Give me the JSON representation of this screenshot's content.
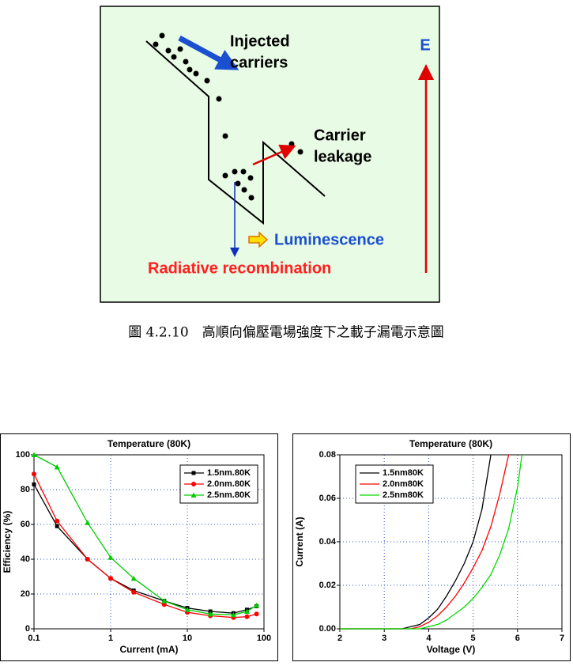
{
  "diagram": {
    "injected_carriers": [
      "Injected",
      "carriers"
    ],
    "carrier_leakage": [
      "Carrier",
      "leakage"
    ],
    "field": "E",
    "luminescence": "Luminescence",
    "radiative_recombination": "Radiative recombination"
  },
  "caption": "圖 4.2.10　高順向偏壓電場強度下之載子漏電示意圖",
  "chart_data": [
    {
      "type": "line",
      "title": "Temperature (80K)",
      "x_label": "Current (mA)",
      "y_label": "Efficiency (%)",
      "x_scale": "log",
      "x": [
        0.1,
        0.2,
        0.5,
        1,
        2,
        5,
        10,
        20,
        40,
        60,
        80
      ],
      "series": [
        {
          "name": "1.5nm.80K",
          "color": "#000000",
          "marker": "square",
          "values": [
            83,
            59,
            40,
            29,
            22,
            16,
            12,
            10,
            9,
            11,
            13
          ]
        },
        {
          "name": "2.0nm.80K",
          "color": "#ff0000",
          "marker": "circle",
          "values": [
            89,
            62,
            40,
            29,
            21,
            14,
            9.5,
            7.5,
            6.5,
            7,
            8.5
          ]
        },
        {
          "name": "2.5nm.80K",
          "color": "#00cc00",
          "marker": "triangle",
          "values": [
            100,
            93,
            61,
            41,
            29,
            16,
            11,
            8.5,
            8,
            10,
            13.5
          ]
        }
      ],
      "xlim": [
        0.1,
        100
      ],
      "xticks": [
        0.1,
        1,
        10,
        100
      ],
      "ylim": [
        0,
        100
      ],
      "yticks": [
        0,
        20,
        40,
        60,
        80,
        100
      ],
      "grid": true,
      "legend": "upper right"
    },
    {
      "type": "line",
      "title": "Temperature (80K)",
      "x_label": "Voltage (V)",
      "y_label": "Current (A)",
      "x_scale": "linear",
      "x": [
        2,
        3,
        3.4,
        3.6,
        3.8,
        4.0,
        4.2,
        4.4,
        4.6,
        4.8,
        5.0,
        5.2,
        5.4,
        5.6,
        5.8,
        6.0,
        6.1
      ],
      "series": [
        {
          "name": "1.5nm80K",
          "color": "#000000",
          "values": [
            0,
            0,
            0,
            0.001,
            0.002,
            0.005,
            0.009,
            0.015,
            0.022,
            0.03,
            0.04,
            0.055,
            0.08,
            null,
            null,
            null,
            null
          ]
        },
        {
          "name": "2.0nm80K",
          "color": "#ff0000",
          "values": [
            0,
            0,
            0,
            0,
            0.001,
            0.003,
            0.006,
            0.01,
            0.015,
            0.021,
            0.028,
            0.036,
            0.047,
            0.062,
            0.08,
            null,
            null
          ]
        },
        {
          "name": "2.5nm80K",
          "color": "#00dd00",
          "values": [
            0,
            0,
            0,
            0,
            0,
            0.001,
            0.002,
            0.004,
            0.007,
            0.01,
            0.014,
            0.019,
            0.025,
            0.034,
            0.046,
            0.065,
            0.08
          ]
        }
      ],
      "xlim": [
        2,
        7
      ],
      "xticks": [
        2,
        3,
        4,
        5,
        6,
        7
      ],
      "ylim": [
        0,
        0.08
      ],
      "yticks": [
        {
          "value": 0,
          "label": "0.00"
        },
        {
          "value": 0.02,
          "label": "0.02"
        },
        {
          "value": 0.04,
          "label": "0.04"
        },
        {
          "value": 0.06,
          "label": "0.06"
        },
        {
          "value": 0.08,
          "label": "0.08"
        }
      ],
      "grid": true,
      "legend": "upper left"
    }
  ]
}
